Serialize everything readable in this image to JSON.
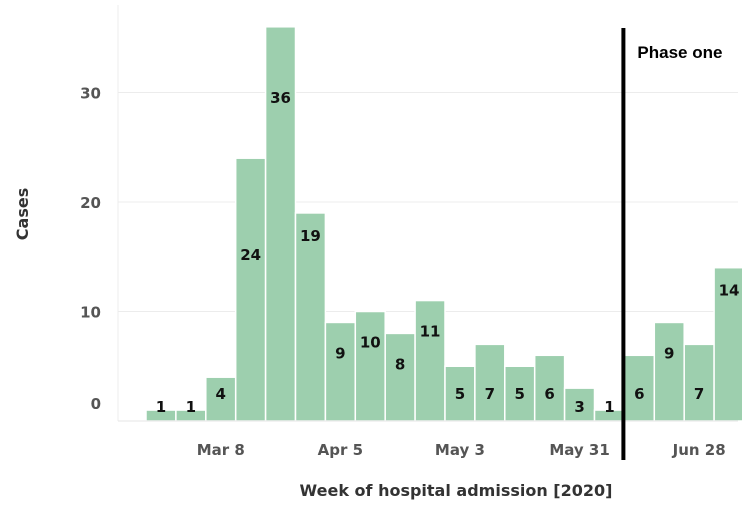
{
  "chart_data": {
    "type": "bar",
    "xlabel": "Week of hospital admission [2020]",
    "ylabel": "Cases",
    "ylim": [
      0,
      38
    ],
    "yticks": [
      0,
      10,
      20,
      30
    ],
    "x_tick_labels": [
      "Mar 8",
      "Apr 5",
      "May 3",
      "May 31",
      "Jun 28"
    ],
    "x_tick_at_bar": [
      2,
      6,
      10,
      14,
      18
    ],
    "values": [
      1,
      1,
      4,
      24,
      36,
      19,
      9,
      10,
      8,
      11,
      5,
      7,
      5,
      6,
      3,
      1,
      6,
      9,
      7,
      14
    ],
    "data_labels": [
      "1",
      "1",
      "4",
      "24",
      "36",
      "19",
      "9",
      "10",
      "8",
      "11",
      "5",
      "7",
      "5",
      "6",
      "3",
      "1",
      "6",
      "9",
      "7",
      "14"
    ],
    "grid": true,
    "bar_color": "#9dcfae",
    "bar_edge_color": "#ffffff",
    "phase_line_before_bar": 16,
    "annotation": "Phase one"
  }
}
